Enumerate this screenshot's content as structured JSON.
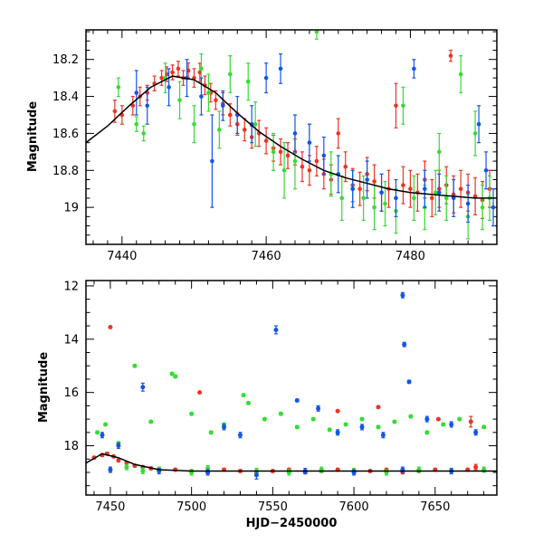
{
  "colors": {
    "red": "#ee3322",
    "green": "#33dd33",
    "blue": "#1155ee",
    "model": "#000000",
    "axis": "#000000"
  },
  "chart_data": [
    {
      "type": "scatter",
      "panel": "top",
      "title": "",
      "xlabel": "",
      "ylabel": "Magnitude",
      "xlim": [
        7435,
        7492
      ],
      "ylim": [
        19.2,
        18.04
      ],
      "y_inverted": true,
      "x_ticks": [
        7440,
        7460,
        7480
      ],
      "y_ticks": [
        18.2,
        18.4,
        18.6,
        18.8,
        19
      ],
      "y_tick_labels": [
        "18.2",
        "18.4",
        "18.6",
        "18.8",
        "19"
      ],
      "model_curve": {
        "color": "black",
        "x": [
          7435,
          7438,
          7441,
          7444,
          7447,
          7450,
          7453,
          7456,
          7459,
          7462,
          7465,
          7468,
          7471,
          7474,
          7477,
          7480,
          7483,
          7486,
          7489,
          7492
        ],
        "y": [
          18.65,
          18.56,
          18.45,
          18.35,
          18.29,
          18.31,
          18.38,
          18.49,
          18.59,
          18.67,
          18.74,
          18.8,
          18.84,
          18.87,
          18.9,
          18.92,
          18.93,
          18.94,
          18.95,
          18.95
        ]
      },
      "series": [
        {
          "color": "red",
          "x": [
            7439.0,
            7440.0,
            7441.5,
            7442.5,
            7443.5,
            7444.5,
            7445.5,
            7446.2,
            7447.0,
            7447.8,
            7448.5,
            7449.2,
            7450.0,
            7450.8,
            7451.5,
            7452.3,
            7453.0,
            7454.0,
            7455.0,
            7456.0,
            7457.0,
            7458.0,
            7459.0,
            7460.0,
            7461.0,
            7462.0,
            7463.0,
            7464.0,
            7465.0,
            7466.0,
            7467.0,
            7468.0,
            7469.0,
            7470.0,
            7471.0,
            7472.0,
            7473.0,
            7474.0,
            7475.0,
            7476.0,
            7477.0,
            7478.0,
            7479.0,
            7480.0,
            7481.0,
            7482.0,
            7483.0,
            7484.0,
            7485.0,
            7486.0,
            7487.0,
            7488.0,
            7489.0,
            7490.0,
            7491.0,
            7485.6
          ],
          "y": [
            18.48,
            18.5,
            18.45,
            18.4,
            18.38,
            18.33,
            18.3,
            18.28,
            18.27,
            18.25,
            18.3,
            18.26,
            18.3,
            18.27,
            18.34,
            18.38,
            18.42,
            18.44,
            18.5,
            18.55,
            18.58,
            18.62,
            18.6,
            18.64,
            18.68,
            18.7,
            18.72,
            18.7,
            18.78,
            18.8,
            18.75,
            18.82,
            18.85,
            18.6,
            18.78,
            18.88,
            18.9,
            18.82,
            18.86,
            18.92,
            18.9,
            18.45,
            18.88,
            18.9,
            18.92,
            18.85,
            18.95,
            18.9,
            18.88,
            18.93,
            18.9,
            18.92,
            18.94,
            18.96,
            18.9,
            18.18
          ],
          "err": [
            0.06,
            0.05,
            0.05,
            0.05,
            0.04,
            0.04,
            0.04,
            0.04,
            0.04,
            0.04,
            0.04,
            0.04,
            0.05,
            0.05,
            0.05,
            0.05,
            0.05,
            0.06,
            0.06,
            0.06,
            0.06,
            0.06,
            0.07,
            0.07,
            0.07,
            0.07,
            0.07,
            0.07,
            0.08,
            0.08,
            0.08,
            0.08,
            0.08,
            0.08,
            0.08,
            0.09,
            0.09,
            0.09,
            0.09,
            0.1,
            0.1,
            0.12,
            0.1,
            0.1,
            0.1,
            0.1,
            0.1,
            0.1,
            0.1,
            0.1,
            0.1,
            0.1,
            0.1,
            0.1,
            0.1,
            0.03
          ]
        },
        {
          "color": "green",
          "x": [
            7439.5,
            7442.0,
            7443.0,
            7446.0,
            7448.0,
            7450.0,
            7451.0,
            7452.0,
            7453.5,
            7455.0,
            7457.5,
            7458.5,
            7461.0,
            7462.5,
            7464.0,
            7466.0,
            7467.0,
            7469.0,
            7470.5,
            7472.0,
            7473.5,
            7475.0,
            7476.5,
            7478.0,
            7479.0,
            7480.5,
            7482.0,
            7483.5,
            7484.0,
            7485.0,
            7487.0,
            7488.0,
            7489.0,
            7490.0,
            7491.0
          ],
          "y": [
            18.35,
            18.55,
            18.6,
            18.3,
            18.42,
            18.55,
            18.25,
            18.38,
            18.58,
            18.28,
            18.32,
            18.55,
            18.7,
            18.8,
            18.75,
            18.65,
            18.05,
            18.82,
            18.95,
            18.9,
            18.95,
            19.0,
            18.98,
            19.02,
            18.45,
            18.95,
            19.0,
            18.92,
            18.7,
            18.95,
            18.28,
            19.05,
            18.6,
            19.0,
            18.95
          ],
          "err": [
            0.05,
            0.04,
            0.04,
            0.08,
            0.1,
            0.1,
            0.08,
            0.1,
            0.1,
            0.1,
            0.1,
            0.12,
            0.1,
            0.15,
            0.15,
            0.1,
            0.04,
            0.12,
            0.12,
            0.1,
            0.12,
            0.12,
            0.12,
            0.12,
            0.1,
            0.12,
            0.12,
            0.12,
            0.1,
            0.12,
            0.1,
            0.12,
            0.12,
            0.12,
            0.12
          ]
        },
        {
          "color": "blue",
          "x": [
            7442.0,
            7443.5,
            7446.5,
            7449.0,
            7451.0,
            7452.5,
            7454.0,
            7456.0,
            7458.0,
            7460.0,
            7462.0,
            7464.0,
            7466.0,
            7468.0,
            7470.0,
            7472.0,
            7474.0,
            7476.0,
            7478.0,
            7480.5,
            7482.0,
            7484.0,
            7486.0,
            7488.0,
            7489.5,
            7490.5,
            7491.5
          ],
          "y": [
            18.38,
            18.45,
            18.35,
            18.3,
            18.4,
            18.75,
            18.45,
            18.5,
            18.55,
            18.3,
            18.25,
            18.6,
            18.65,
            18.72,
            18.82,
            18.9,
            18.85,
            18.92,
            18.95,
            18.25,
            18.9,
            18.92,
            18.95,
            18.98,
            18.55,
            18.8,
            19.0
          ],
          "err": [
            0.12,
            0.1,
            0.1,
            0.1,
            0.1,
            0.25,
            0.08,
            0.1,
            0.1,
            0.08,
            0.08,
            0.1,
            0.1,
            0.1,
            0.1,
            0.1,
            0.1,
            0.1,
            0.1,
            0.05,
            0.1,
            0.1,
            0.1,
            0.1,
            0.1,
            0.1,
            0.1
          ]
        }
      ]
    },
    {
      "type": "scatter",
      "panel": "bottom",
      "title": "",
      "xlabel": "HJD−2450000",
      "ylabel": "Magnitude",
      "xlim": [
        7435,
        7688
      ],
      "ylim": [
        19.85,
        11.8
      ],
      "y_inverted": true,
      "x_ticks": [
        7450,
        7500,
        7550,
        7600,
        7650
      ],
      "y_ticks": [
        12,
        14,
        16,
        18
      ],
      "y_tick_labels": [
        "12",
        "14",
        "16",
        "18"
      ],
      "model_curve": {
        "color": "black",
        "x": [
          7435,
          7445,
          7455,
          7465,
          7480,
          7500,
          7550,
          7600,
          7650,
          7688
        ],
        "y": [
          18.65,
          18.3,
          18.45,
          18.7,
          18.9,
          18.95,
          18.95,
          18.95,
          18.95,
          18.95
        ]
      },
      "series": [
        {
          "color": "red",
          "x": [
            7440,
            7445,
            7448,
            7452,
            7455,
            7460,
            7465,
            7470,
            7475,
            7480,
            7490,
            7500,
            7510,
            7520,
            7530,
            7540,
            7550,
            7560,
            7570,
            7580,
            7590,
            7600,
            7610,
            7620,
            7630,
            7640,
            7650,
            7660,
            7670,
            7675,
            7450,
            7505,
            7590,
            7615,
            7652,
            7672
          ],
          "y": [
            18.45,
            18.35,
            18.3,
            18.4,
            18.55,
            18.65,
            18.75,
            18.8,
            18.85,
            18.9,
            18.9,
            18.95,
            19.0,
            18.9,
            18.95,
            19.0,
            18.95,
            18.9,
            19.0,
            18.95,
            18.9,
            19.0,
            18.95,
            18.9,
            19.0,
            18.95,
            18.9,
            18.95,
            18.9,
            18.8,
            13.55,
            16.0,
            16.7,
            16.55,
            17.0,
            17.1
          ],
          "err": [
            0.05,
            0.05,
            0.05,
            0.05,
            0.05,
            0.05,
            0.05,
            0.05,
            0.05,
            0.05,
            0.05,
            0.05,
            0.05,
            0.05,
            0.05,
            0.05,
            0.05,
            0.05,
            0.05,
            0.05,
            0.05,
            0.05,
            0.05,
            0.05,
            0.05,
            0.05,
            0.05,
            0.05,
            0.05,
            0.1,
            0.02,
            0.02,
            0.02,
            0.02,
            0.02,
            0.2
          ]
        },
        {
          "color": "green",
          "x": [
            7442,
            7447,
            7455,
            7465,
            7475,
            7488,
            7490,
            7500,
            7512,
            7520,
            7532,
            7535,
            7545,
            7555,
            7565,
            7575,
            7585,
            7595,
            7605,
            7615,
            7625,
            7635,
            7645,
            7655,
            7665,
            7680,
            7450,
            7460,
            7470,
            7480,
            7500,
            7510,
            7540,
            7560,
            7580,
            7600,
            7620,
            7640,
            7660,
            7680
          ],
          "y": [
            17.5,
            17.2,
            17.9,
            15.0,
            17.1,
            15.3,
            15.4,
            16.8,
            17.5,
            17.2,
            16.1,
            16.4,
            17.0,
            16.8,
            17.3,
            17.0,
            17.4,
            17.2,
            17.0,
            17.3,
            17.1,
            16.9,
            17.5,
            17.2,
            17.0,
            17.3,
            18.9,
            18.8,
            18.95,
            18.9,
            19.0,
            18.85,
            18.95,
            19.0,
            18.9,
            18.95,
            19.0,
            18.9,
            18.95,
            18.9
          ],
          "err": [
            0.05,
            0.05,
            0.05,
            0.05,
            0.05,
            0.05,
            0.05,
            0.05,
            0.05,
            0.05,
            0.05,
            0.05,
            0.05,
            0.05,
            0.05,
            0.05,
            0.05,
            0.05,
            0.05,
            0.05,
            0.05,
            0.05,
            0.05,
            0.05,
            0.05,
            0.05,
            0.1,
            0.1,
            0.1,
            0.1,
            0.1,
            0.1,
            0.1,
            0.1,
            0.1,
            0.1,
            0.1,
            0.1,
            0.1,
            0.1
          ]
        },
        {
          "color": "blue",
          "x": [
            7445,
            7455,
            7470,
            7520,
            7530,
            7552,
            7565,
            7578,
            7590,
            7605,
            7618,
            7630,
            7631,
            7634,
            7645,
            7660,
            7675,
            7450,
            7480,
            7510,
            7540,
            7570,
            7600,
            7630,
            7660
          ],
          "y": [
            17.6,
            18.0,
            15.8,
            17.3,
            17.6,
            13.65,
            16.3,
            16.6,
            17.5,
            17.3,
            17.6,
            12.35,
            14.2,
            15.6,
            17.0,
            17.2,
            17.5,
            18.9,
            18.95,
            19.0,
            19.1,
            18.95,
            19.0,
            18.9,
            18.95
          ],
          "err": [
            0.1,
            0.1,
            0.15,
            0.1,
            0.1,
            0.15,
            0.05,
            0.1,
            0.1,
            0.1,
            0.1,
            0.1,
            0.08,
            0.06,
            0.1,
            0.1,
            0.1,
            0.1,
            0.1,
            0.1,
            0.15,
            0.1,
            0.1,
            0.1,
            0.1
          ]
        }
      ]
    }
  ]
}
